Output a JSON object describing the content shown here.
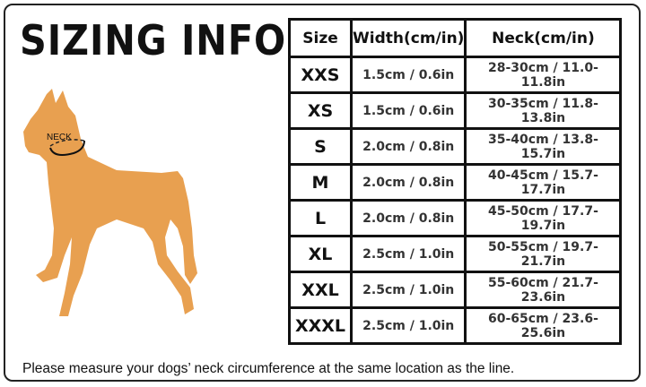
{
  "title": "SIZING INFO",
  "dog_label": "NECK",
  "dog_color": "#E8A050",
  "table": {
    "headers": [
      "Size",
      "Width(cm/in)",
      "Neck(cm/in)"
    ],
    "rows": [
      {
        "size": "XXS",
        "width": "1.5cm / 0.6in",
        "neck": "28-30cm / 11.0-11.8in"
      },
      {
        "size": "XS",
        "width": "1.5cm / 0.6in",
        "neck": "30-35cm / 11.8-13.8in"
      },
      {
        "size": "S",
        "width": "2.0cm / 0.8in",
        "neck": "35-40cm / 13.8-15.7in"
      },
      {
        "size": "M",
        "width": "2.0cm / 0.8in",
        "neck": "40-45cm / 15.7-17.7in"
      },
      {
        "size": "L",
        "width": "2.0cm / 0.8in",
        "neck": "45-50cm / 17.7-19.7in"
      },
      {
        "size": "XL",
        "width": "2.5cm / 1.0in",
        "neck": "50-55cm / 19.7-21.7in"
      },
      {
        "size": "XXL",
        "width": "2.5cm / 1.0in",
        "neck": "55-60cm / 21.7-23.6in"
      },
      {
        "size": "XXXL",
        "width": "2.5cm / 1.0in",
        "neck": "60-65cm / 23.6-25.6in"
      }
    ]
  },
  "footer": "Please measure your dogs’  neck circumference at the same location as the line."
}
